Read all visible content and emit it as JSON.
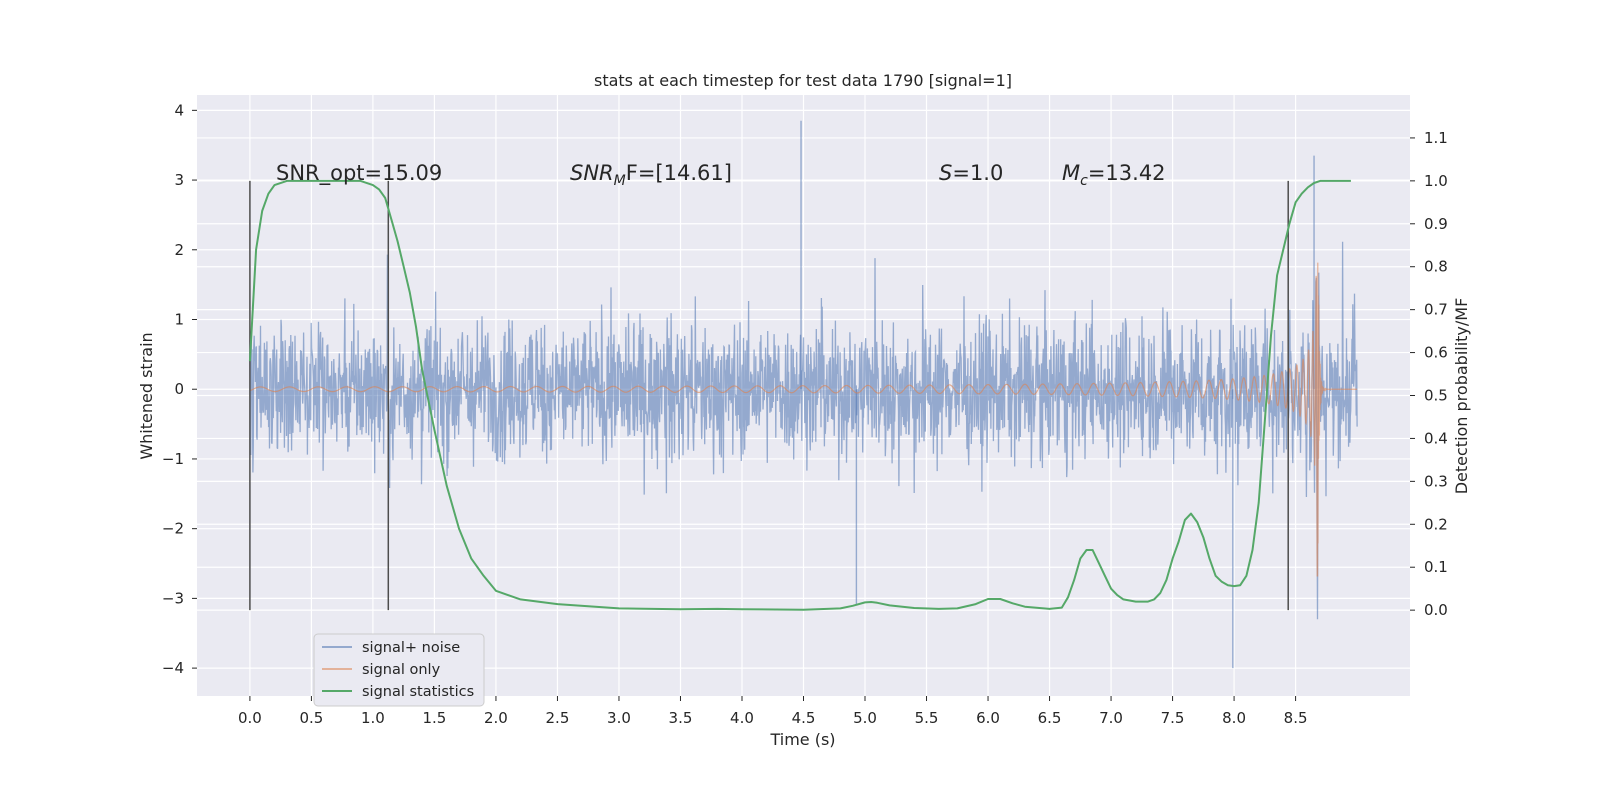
{
  "chart_data": {
    "type": "line",
    "title": "stats at each timestep for test data 1790 [signal=1]",
    "xlabel": "Time (s)",
    "ylabel_left": "Whitened strain",
    "ylabel_right": "Detection probability/MF",
    "xlim": [
      -0.43,
      9.43
    ],
    "ylim_left": [
      -4.4,
      4.22
    ],
    "ylim_right": [
      -0.2,
      1.2
    ],
    "x_ticks": [
      "0.0",
      "0.5",
      "1.0",
      "1.5",
      "2.0",
      "2.5",
      "3.0",
      "3.5",
      "4.0",
      "4.5",
      "5.0",
      "5.5",
      "6.0",
      "6.5",
      "7.0",
      "7.5",
      "8.0",
      "8.5"
    ],
    "y_ticks_left": [
      "4",
      "3",
      "2",
      "1",
      "0",
      "−1",
      "−2",
      "−3",
      "−4"
    ],
    "y_ticks_right": [
      "1.1",
      "1.0",
      "0.9",
      "0.8",
      "0.7",
      "0.6",
      "0.5",
      "0.4",
      "0.3",
      "0.2",
      "0.1",
      "0.0"
    ],
    "grid": true,
    "legend_placement": "lower-left",
    "annotations": {
      "snr_opt": "SNR_opt=15.09",
      "snr_mf_sym": "SNR",
      "snr_mf_sub": "M",
      "snr_mf_rest": "F=[14.61]",
      "s_sym": "S",
      "s_rest": "=1.0",
      "mc_sym": "M",
      "mc_sub": "c",
      "mc_rest": "=13.42"
    },
    "vertical_markers_x": [
      0.0,
      1.125,
      8.44
    ],
    "series": [
      {
        "name": "signal+ noise",
        "color": "#4c72b0",
        "axis": "left",
        "x_range": [
          0.0,
          9.0
        ],
        "envelope_typical": 1.2,
        "peak_max": 3.85,
        "peak_min": -4.0
      },
      {
        "name": "signal only",
        "color": "#dd8452",
        "axis": "left",
        "chirp_start": 0.0,
        "chirp_merger": 8.68,
        "peak_amplitude": 2.7,
        "ringdown_end": 9.0
      },
      {
        "name": "signal statistics",
        "color": "#55a868",
        "axis": "right",
        "x": [
          0.0,
          0.05,
          0.1,
          0.15,
          0.2,
          0.3,
          0.5,
          0.7,
          0.9,
          1.0,
          1.05,
          1.1,
          1.15,
          1.2,
          1.25,
          1.3,
          1.35,
          1.4,
          1.5,
          1.6,
          1.7,
          1.8,
          1.9,
          2.0,
          2.2,
          2.5,
          3.0,
          3.5,
          3.8,
          4.0,
          4.5,
          4.8,
          4.9,
          5.0,
          5.05,
          5.1,
          5.2,
          5.4,
          5.6,
          5.75,
          5.9,
          6.0,
          6.1,
          6.2,
          6.3,
          6.5,
          6.6,
          6.65,
          6.7,
          6.75,
          6.8,
          6.85,
          6.9,
          6.95,
          7.0,
          7.05,
          7.1,
          7.2,
          7.3,
          7.35,
          7.4,
          7.45,
          7.5,
          7.55,
          7.6,
          7.65,
          7.7,
          7.75,
          7.8,
          7.85,
          7.9,
          7.95,
          8.0,
          8.05,
          8.1,
          8.15,
          8.2,
          8.25,
          8.3,
          8.35,
          8.4,
          8.45,
          8.5,
          8.55,
          8.6,
          8.65,
          8.7,
          8.8,
          8.9,
          8.95
        ],
        "y": [
          0.58,
          0.84,
          0.93,
          0.97,
          0.99,
          1.0,
          1.0,
          1.0,
          1.0,
          0.99,
          0.98,
          0.96,
          0.91,
          0.86,
          0.8,
          0.74,
          0.66,
          0.56,
          0.42,
          0.29,
          0.19,
          0.12,
          0.08,
          0.045,
          0.025,
          0.014,
          0.004,
          0.002,
          0.003,
          0.002,
          0.001,
          0.004,
          0.01,
          0.018,
          0.019,
          0.017,
          0.011,
          0.005,
          0.003,
          0.004,
          0.014,
          0.026,
          0.026,
          0.016,
          0.008,
          0.003,
          0.006,
          0.03,
          0.07,
          0.12,
          0.14,
          0.14,
          0.11,
          0.08,
          0.05,
          0.035,
          0.025,
          0.02,
          0.02,
          0.025,
          0.04,
          0.07,
          0.12,
          0.16,
          0.21,
          0.225,
          0.205,
          0.17,
          0.12,
          0.08,
          0.066,
          0.058,
          0.056,
          0.058,
          0.08,
          0.14,
          0.25,
          0.44,
          0.64,
          0.78,
          0.84,
          0.9,
          0.95,
          0.97,
          0.985,
          0.995,
          1.0,
          1.0,
          1.0,
          1.0
        ]
      }
    ]
  }
}
